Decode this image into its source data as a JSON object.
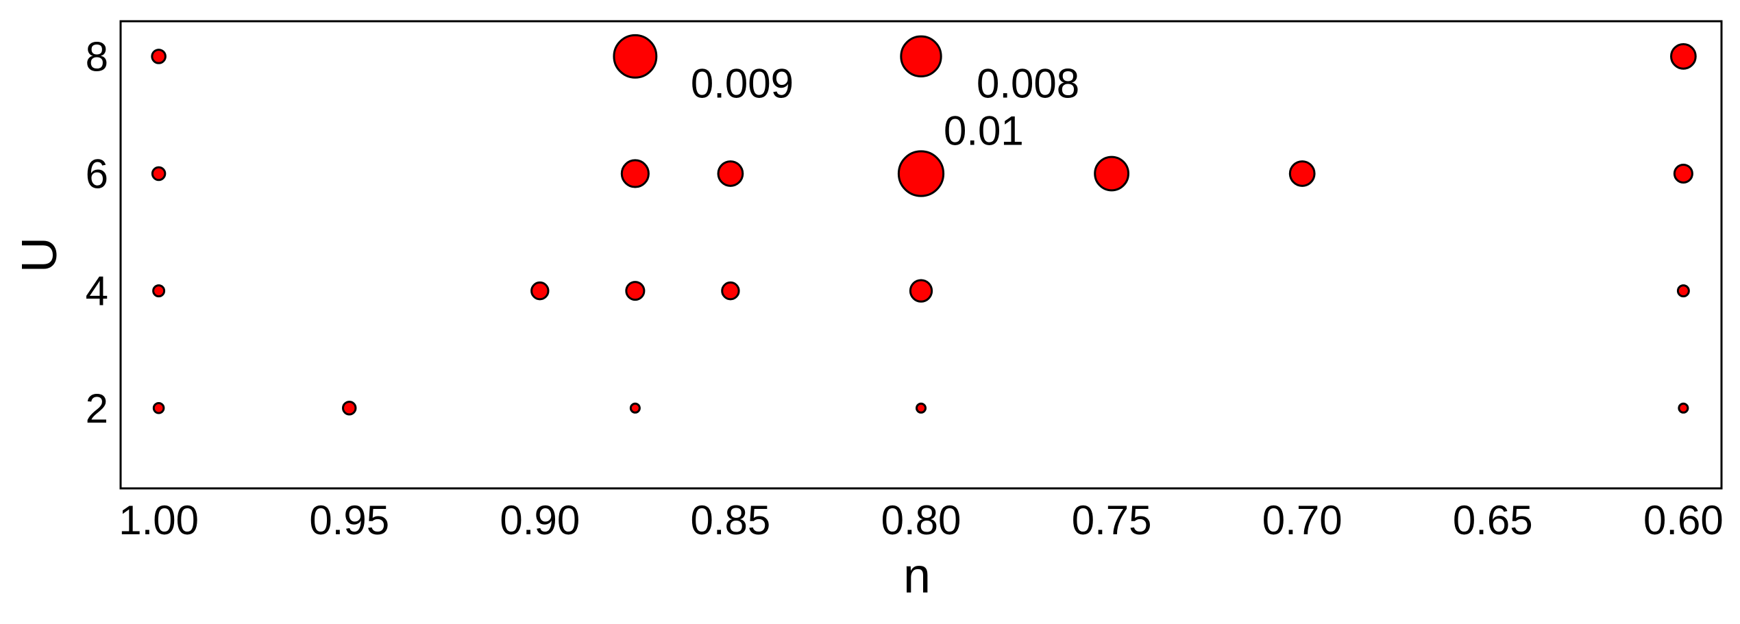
{
  "chart_data": {
    "type": "scatter",
    "x_label": "n",
    "y_label": "U",
    "xlim": [
      1.01,
      0.59
    ],
    "ylim": [
      0.63,
      8.6
    ],
    "xticks": [
      {
        "value": 1.0,
        "label": "1.00"
      },
      0.95,
      {
        "value": 0.9,
        "label": "0.90"
      },
      0.85,
      {
        "value": 0.8,
        "label": "0.80"
      },
      0.75,
      {
        "value": 0.7,
        "label": "0.70"
      },
      0.65,
      {
        "value": 0.6,
        "label": "0.60"
      }
    ],
    "yticks": [
      2,
      4,
      6,
      8
    ],
    "grid": false,
    "series": [
      {
        "color": "#ff0000",
        "x": [
          1.0,
          0.875,
          0.8,
          0.6,
          1.0,
          0.875,
          0.85,
          0.8,
          0.75,
          0.7,
          0.6,
          1.0,
          0.9,
          0.875,
          0.85,
          0.8,
          0.6,
          1.0,
          0.95,
          0.875,
          0.8,
          0.6
        ],
        "values": [
          8,
          8,
          8,
          8,
          6,
          6,
          6,
          6,
          6,
          6,
          6,
          4,
          4,
          4,
          4,
          4,
          4,
          2,
          2,
          2,
          2,
          2
        ],
        "sizes": [
          0.0009,
          0.009,
          0.008,
          0.003,
          0.0008,
          0.0036,
          0.003,
          0.01,
          0.0056,
          0.003,
          0.0016,
          0.0006,
          0.0014,
          0.0016,
          0.0014,
          0.0023,
          0.0006,
          0.0005,
          0.0008,
          0.0004,
          0.0004,
          0.0004
        ]
      }
    ],
    "annotations": [
      "0.009",
      "0.008",
      "0.01"
    ]
  }
}
